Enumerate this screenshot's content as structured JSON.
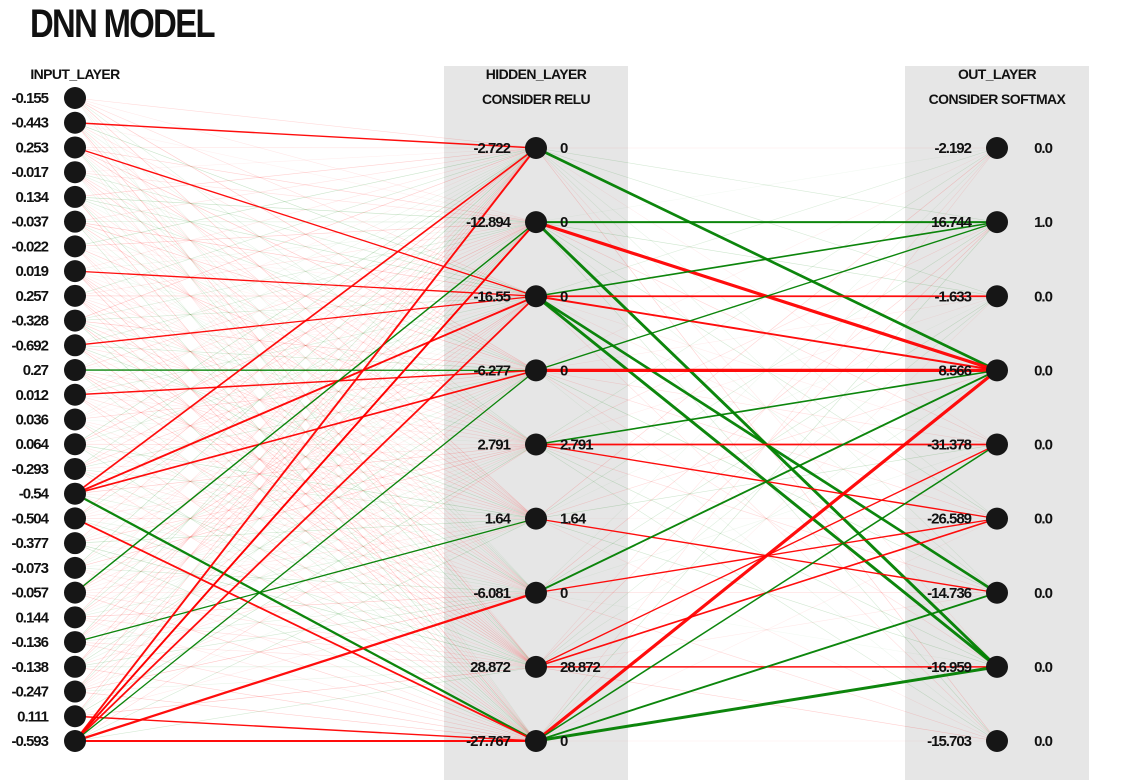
{
  "title": "DNN MODEL",
  "layers": {
    "input": {
      "header": "INPUT_LAYER",
      "values": [
        "-0.155",
        "-0.443",
        "0.253",
        "-0.017",
        "0.134",
        "-0.037",
        "-0.022",
        "0.019",
        "0.257",
        "-0.328",
        "-0.692",
        "0.27",
        "0.012",
        "0.036",
        "0.064",
        "-0.293",
        "-0.54",
        "-0.504",
        "-0.377",
        "-0.073",
        "-0.057",
        "0.144",
        "-0.136",
        "-0.138",
        "-0.247",
        "0.111",
        "-0.593"
      ]
    },
    "hidden": {
      "header": "HIDDEN_LAYER",
      "subheader": "CONSIDER RELU",
      "preactivations": [
        "-2.722",
        "-12.894",
        "-16.55",
        "-6.277",
        "2.791",
        "1.64",
        "-6.081",
        "28.872",
        "-27.767"
      ],
      "activations": [
        "0",
        "0",
        "0",
        "0",
        "2.791",
        "1.64",
        "0",
        "28.872",
        "0"
      ]
    },
    "output": {
      "header": "OUT_LAYER",
      "subheader": "CONSIDER SOFTMAX",
      "preactivations": [
        "-2.192",
        "16.744",
        "-1.633",
        "8.566",
        "-31.378",
        "-26.589",
        "-14.736",
        "-16.959",
        "-15.703"
      ],
      "activations": [
        "0.0",
        "1.0",
        "0.0",
        "0.0",
        "0.0",
        "0.0",
        "0.0",
        "0.0",
        "0.0"
      ]
    }
  },
  "colors": {
    "positive_weight": "#008000",
    "negative_weight": "#ff0000",
    "node": "#161616",
    "panel": "#e6e6e6"
  },
  "strong_connections": {
    "input_to_hidden": [
      {
        "from": 1,
        "to": 0,
        "sign": "neg",
        "strength": 0.35
      },
      {
        "from": 2,
        "to": 2,
        "sign": "neg",
        "strength": 0.3
      },
      {
        "from": 7,
        "to": 2,
        "sign": "neg",
        "strength": 0.3
      },
      {
        "from": 10,
        "to": 2,
        "sign": "neg",
        "strength": 0.3
      },
      {
        "from": 11,
        "to": 3,
        "sign": "pos",
        "strength": 0.3
      },
      {
        "from": 12,
        "to": 3,
        "sign": "neg",
        "strength": 0.35
      },
      {
        "from": 16,
        "to": 0,
        "sign": "neg",
        "strength": 0.45
      },
      {
        "from": 16,
        "to": 2,
        "sign": "neg",
        "strength": 0.55
      },
      {
        "from": 16,
        "to": 3,
        "sign": "neg",
        "strength": 0.45
      },
      {
        "from": 16,
        "to": 8,
        "sign": "pos",
        "strength": 0.7
      },
      {
        "from": 17,
        "to": 8,
        "sign": "neg",
        "strength": 0.5
      },
      {
        "from": 20,
        "to": 1,
        "sign": "pos",
        "strength": 0.35
      },
      {
        "from": 22,
        "to": 5,
        "sign": "pos",
        "strength": 0.3
      },
      {
        "from": 25,
        "to": 8,
        "sign": "neg",
        "strength": 0.35
      },
      {
        "from": 26,
        "to": 0,
        "sign": "neg",
        "strength": 0.55
      },
      {
        "from": 26,
        "to": 1,
        "sign": "neg",
        "strength": 0.55
      },
      {
        "from": 26,
        "to": 2,
        "sign": "neg",
        "strength": 0.5
      },
      {
        "from": 26,
        "to": 6,
        "sign": "neg",
        "strength": 0.7
      },
      {
        "from": 26,
        "to": 8,
        "sign": "neg",
        "strength": 0.6
      },
      {
        "from": 26,
        "to": 3,
        "sign": "pos",
        "strength": 0.3
      },
      {
        "from": 26,
        "to": 1,
        "sign": "neg",
        "strength": 0.4
      }
    ],
    "hidden_to_output": [
      {
        "from": 0,
        "to": 3,
        "sign": "pos",
        "strength": 0.8
      },
      {
        "from": 1,
        "to": 1,
        "sign": "pos",
        "strength": 0.5
      },
      {
        "from": 1,
        "to": 3,
        "sign": "neg",
        "strength": 1.0
      },
      {
        "from": 1,
        "to": 7,
        "sign": "pos",
        "strength": 0.9
      },
      {
        "from": 2,
        "to": 1,
        "sign": "pos",
        "strength": 0.4
      },
      {
        "from": 2,
        "to": 2,
        "sign": "neg",
        "strength": 0.4
      },
      {
        "from": 2,
        "to": 3,
        "sign": "neg",
        "strength": 0.5
      },
      {
        "from": 2,
        "to": 6,
        "sign": "pos",
        "strength": 0.8
      },
      {
        "from": 2,
        "to": 7,
        "sign": "pos",
        "strength": 0.9
      },
      {
        "from": 3,
        "to": 3,
        "sign": "neg",
        "strength": 1.0
      },
      {
        "from": 3,
        "to": 1,
        "sign": "pos",
        "strength": 0.3
      },
      {
        "from": 4,
        "to": 4,
        "sign": "neg",
        "strength": 0.4
      },
      {
        "from": 4,
        "to": 5,
        "sign": "neg",
        "strength": 0.3
      },
      {
        "from": 4,
        "to": 3,
        "sign": "pos",
        "strength": 0.4
      },
      {
        "from": 5,
        "to": 6,
        "sign": "neg",
        "strength": 0.3
      },
      {
        "from": 6,
        "to": 3,
        "sign": "pos",
        "strength": 0.5
      },
      {
        "from": 6,
        "to": 5,
        "sign": "neg",
        "strength": 0.3
      },
      {
        "from": 7,
        "to": 5,
        "sign": "neg",
        "strength": 0.4
      },
      {
        "from": 7,
        "to": 7,
        "sign": "neg",
        "strength": 0.35
      },
      {
        "from": 7,
        "to": 4,
        "sign": "neg",
        "strength": 0.3
      },
      {
        "from": 8,
        "to": 3,
        "sign": "neg",
        "strength": 1.0
      },
      {
        "from": 8,
        "to": 7,
        "sign": "pos",
        "strength": 0.9
      },
      {
        "from": 8,
        "to": 6,
        "sign": "pos",
        "strength": 0.5
      },
      {
        "from": 8,
        "to": 4,
        "sign": "pos",
        "strength": 0.35
      }
    ]
  }
}
